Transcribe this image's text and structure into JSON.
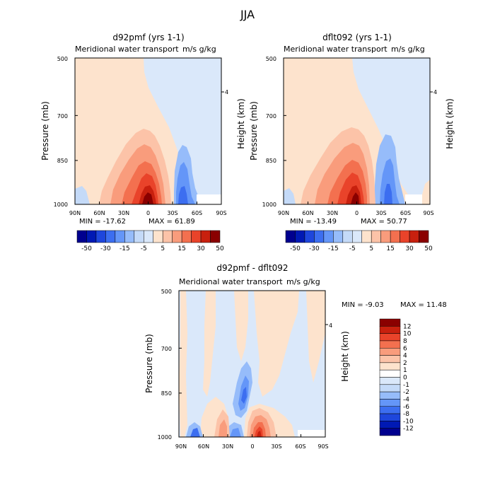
{
  "title": "JJA",
  "lat_ticks": [
    "90N",
    "60N",
    "30N",
    "0",
    "30S",
    "60S",
    "90S"
  ],
  "pres_ticks": [
    "500",
    "700",
    "850",
    "1000"
  ],
  "height_tick": "4",
  "colors": {
    "blue6": "#00008f",
    "blue5": "#0019b4",
    "blue4": "#1e46dc",
    "blue3": "#3c6ef0",
    "blue2": "#6496f8",
    "blue1": "#96bcfa",
    "blue0": "#c4daf8",
    "blueP": "#dae8fa",
    "red0": "#fde3cd",
    "red1": "#fcc3a8",
    "red2": "#f99c7c",
    "red3": "#f3704f",
    "red4": "#e9432a",
    "red5": "#c8200e",
    "red6": "#8a0000"
  },
  "chart_data": [
    {
      "type": "heatmap",
      "panel": "top-left",
      "title": "d92pmf (yrs 1-1)",
      "subtitle": "Meridional water transport",
      "units": "m/s g/kg",
      "ylabel": "Pressure (mb)",
      "ylabel_right": "Height (km)",
      "x_ticks": [
        "90N",
        "60N",
        "30N",
        "0",
        "30S",
        "60S",
        "90S"
      ],
      "y_ticks": [
        500,
        700,
        850,
        1000
      ],
      "min_label": "MIN = -17.62",
      "max_label": "MAX = 61.89",
      "min": -17.62,
      "max": 61.89
    },
    {
      "type": "heatmap",
      "panel": "top-right",
      "title": "dflt092 (yrs 1-1)",
      "subtitle": "Meridional water transport",
      "units": "m/s g/kg",
      "ylabel": "Pressure (mb)",
      "ylabel_right": "Height (km)",
      "x_ticks": [
        "90N",
        "60N",
        "30N",
        "0",
        "30S",
        "60S",
        "90S"
      ],
      "y_ticks": [
        500,
        700,
        850,
        1000
      ],
      "min_label": "MIN = -13.49",
      "max_label": "MAX = 50.77",
      "min": -13.49,
      "max": 50.77
    },
    {
      "type": "heatmap",
      "panel": "bottom",
      "title": "d92pmf - dflt092",
      "subtitle": "Meridional water transport",
      "units": "m/s g/kg",
      "ylabel": "Pressure (mb)",
      "ylabel_right": "Height (km)",
      "x_ticks": [
        "90N",
        "60N",
        "30N",
        "0",
        "30S",
        "60S",
        "90S"
      ],
      "y_ticks": [
        500,
        700,
        850,
        1000
      ],
      "min_label": "MIN = -9.03",
      "max_label": "MAX = 11.48",
      "min": -9.03,
      "max": 11.48
    }
  ],
  "colorbar_top": {
    "labels": [
      "-50",
      "-30",
      "-15",
      "-5",
      "5",
      "15",
      "30",
      "50"
    ]
  },
  "colorbar_bottom": {
    "labels": [
      "12",
      "10",
      "8",
      "6",
      "4",
      "2",
      "1",
      "0",
      "-1",
      "-2",
      "-4",
      "-6",
      "-8",
      "-10",
      "-12"
    ]
  }
}
